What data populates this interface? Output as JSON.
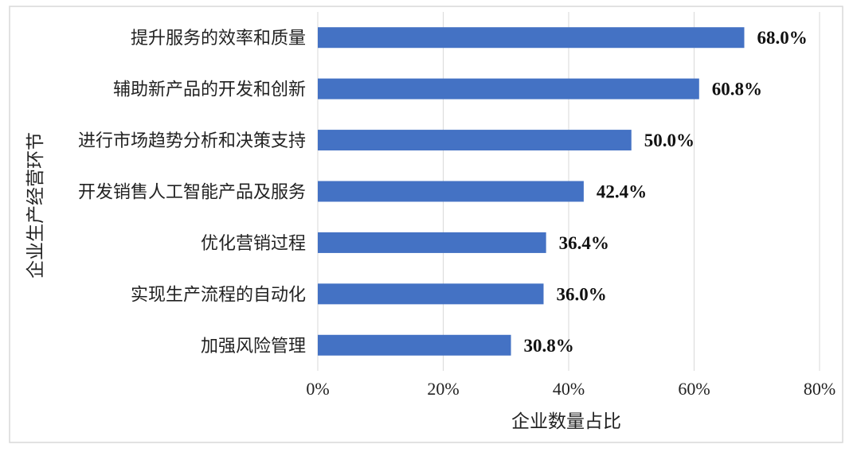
{
  "chart_data": {
    "type": "bar",
    "orientation": "horizontal",
    "title": "",
    "categories": [
      "提升服务的效率和质量",
      "辅助新产品的开发和创新",
      "进行市场趋势分析和决策支持",
      "开发销售人工智能产品及服务",
      "优化营销过程",
      "实现生产流程的自动化",
      "加强风险管理"
    ],
    "values": [
      68.0,
      60.8,
      50.0,
      42.4,
      36.4,
      36.0,
      30.8
    ],
    "value_labels": [
      "68.0%",
      "60.8%",
      "50.0%",
      "42.4%",
      "36.4%",
      "36.0%",
      "30.8%"
    ],
    "xlabel": "企业数量占比",
    "ylabel": "企业生产经营环节",
    "xlim": [
      0,
      80
    ],
    "xticks": [
      0,
      20,
      40,
      60,
      80
    ],
    "xtick_labels": [
      "0%",
      "20%",
      "40%",
      "60%",
      "80%"
    ],
    "grid": "vertical",
    "legend": "none",
    "colors": {
      "bar": "#4472C4",
      "grid": "#d9d9d9",
      "border": "#d9d9d9"
    }
  }
}
